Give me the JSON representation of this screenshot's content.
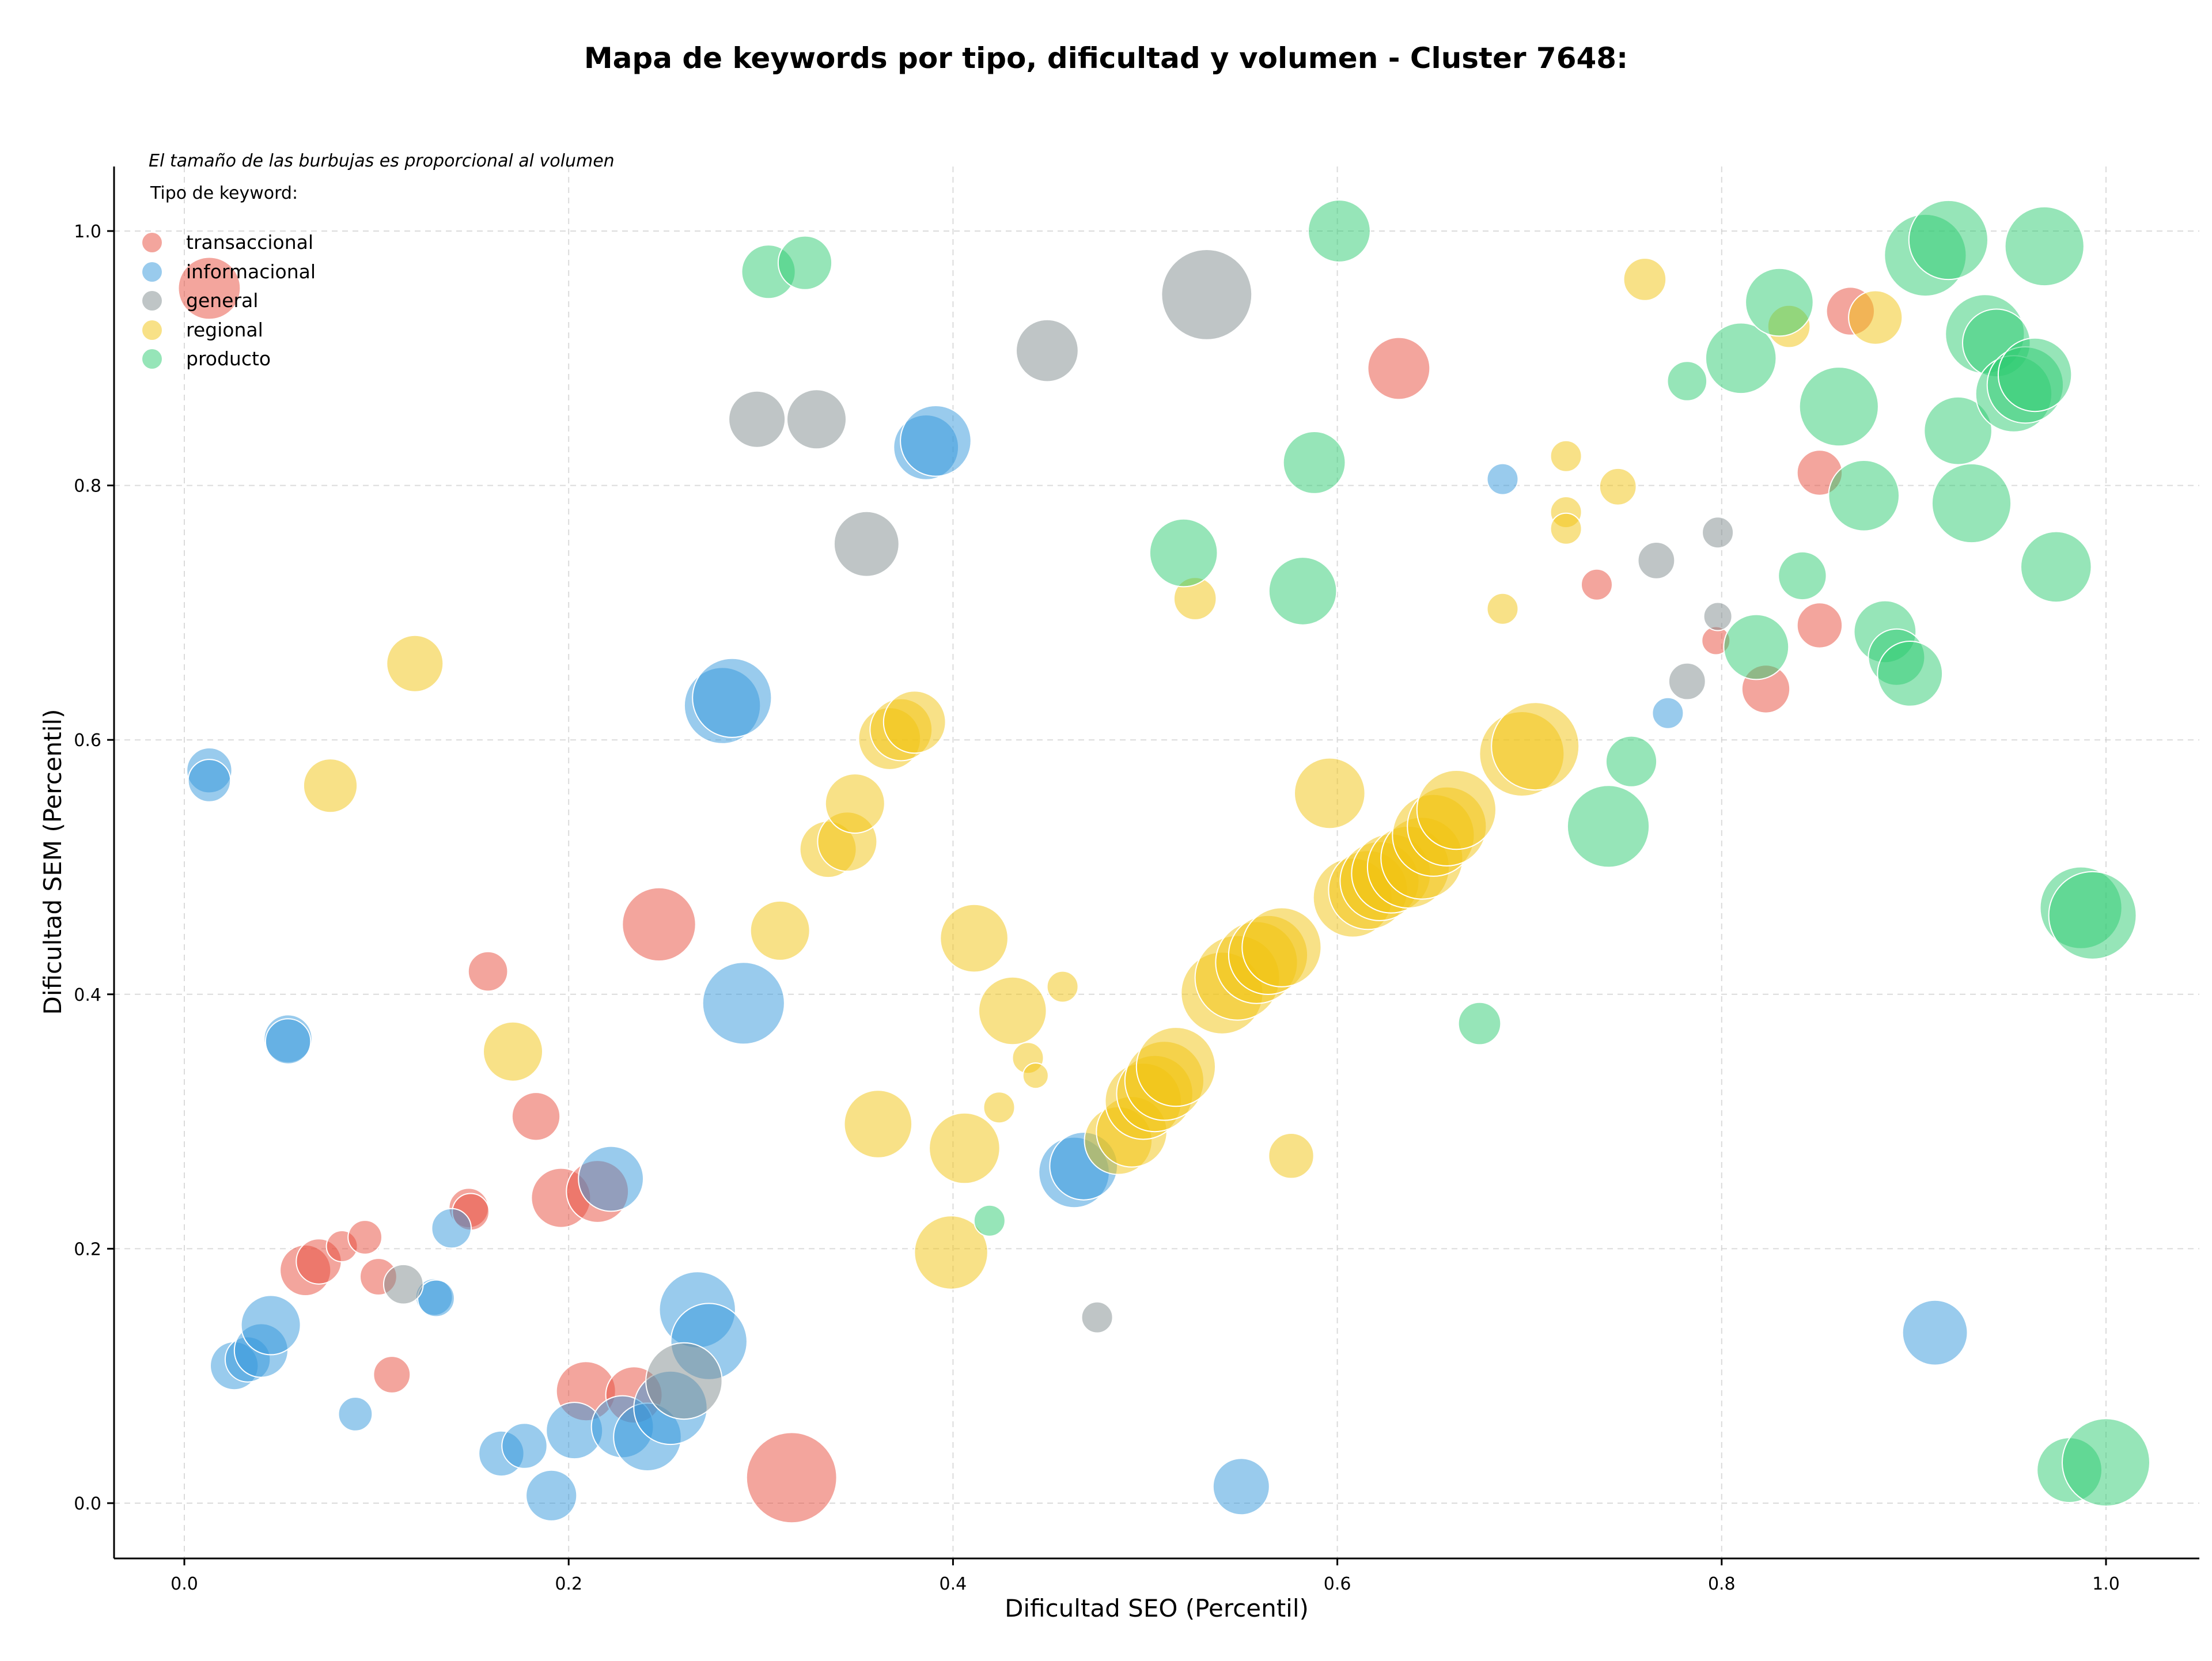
{
  "chart_data": {
    "type": "scatter",
    "title": "Mapa de keywords por tipo, dificultad y volumen - Cluster 7648:",
    "xlabel": "Dificultad SEO (Percentil)",
    "ylabel": "Dificultad SEM (Percentil)",
    "note": "El tamaño de las burbujas es proporcional al volumen",
    "legend_title": "Tipo de keyword:",
    "legend_position": "top-left",
    "grid": true,
    "xlim": [
      -0.035,
      1.045
    ],
    "ylim": [
      -0.043,
      1.05
    ],
    "x_ticks": [
      "0.0",
      "0.2",
      "0.4",
      "0.6",
      "0.8",
      "1.0"
    ],
    "y_ticks": [
      "0.0",
      "0.2",
      "0.4",
      "0.6",
      "0.8",
      "1.0"
    ],
    "series": [
      {
        "name": "transaccional",
        "color": "#e74c3c",
        "points": [
          [
            0.013,
            0.955,
            22
          ],
          [
            0.063,
            0.183,
            18
          ],
          [
            0.07,
            0.19,
            16
          ],
          [
            0.082,
            0.202,
            11
          ],
          [
            0.094,
            0.209,
            12
          ],
          [
            0.101,
            0.178,
            13
          ],
          [
            0.108,
            0.101,
            13
          ],
          [
            0.148,
            0.232,
            14
          ],
          [
            0.149,
            0.229,
            13
          ],
          [
            0.158,
            0.418,
            14
          ],
          [
            0.183,
            0.304,
            17
          ],
          [
            0.196,
            0.24,
            21
          ],
          [
            0.215,
            0.245,
            22
          ],
          [
            0.209,
            0.088,
            21
          ],
          [
            0.234,
            0.085,
            20
          ],
          [
            0.247,
            0.455,
            26
          ],
          [
            0.316,
            0.02,
            32
          ],
          [
            0.632,
            0.892,
            22
          ],
          [
            0.735,
            0.722,
            11
          ],
          [
            0.797,
            0.678,
            10
          ],
          [
            0.823,
            0.64,
            17
          ],
          [
            0.851,
            0.81,
            16
          ],
          [
            0.851,
            0.69,
            16
          ],
          [
            0.867,
            0.937,
            17
          ]
        ]
      },
      {
        "name": "informacional",
        "color": "#3498db",
        "points": [
          [
            0.013,
            0.576,
            16
          ],
          [
            0.013,
            0.568,
            15
          ],
          [
            0.026,
            0.108,
            17
          ],
          [
            0.033,
            0.113,
            16
          ],
          [
            0.04,
            0.12,
            19
          ],
          [
            0.045,
            0.14,
            21
          ],
          [
            0.054,
            0.365,
            17
          ],
          [
            0.054,
            0.363,
            16
          ],
          [
            0.089,
            0.07,
            12
          ],
          [
            0.13,
            0.162,
            13
          ],
          [
            0.131,
            0.161,
            13
          ],
          [
            0.139,
            0.216,
            14
          ],
          [
            0.165,
            0.039,
            16
          ],
          [
            0.177,
            0.045,
            16
          ],
          [
            0.191,
            0.006,
            18
          ],
          [
            0.203,
            0.057,
            20
          ],
          [
            0.222,
            0.255,
            23
          ],
          [
            0.228,
            0.06,
            22
          ],
          [
            0.241,
            0.052,
            24
          ],
          [
            0.253,
            0.075,
            26
          ],
          [
            0.267,
            0.152,
            27
          ],
          [
            0.273,
            0.127,
            27
          ],
          [
            0.28,
            0.627,
            27
          ],
          [
            0.285,
            0.633,
            28
          ],
          [
            0.291,
            0.393,
            29
          ],
          [
            0.386,
            0.83,
            23
          ],
          [
            0.391,
            0.835,
            25
          ],
          [
            0.463,
            0.26,
            25
          ],
          [
            0.468,
            0.265,
            24
          ],
          [
            0.55,
            0.013,
            20
          ],
          [
            0.686,
            0.805,
            11
          ],
          [
            0.772,
            0.621,
            11
          ],
          [
            0.911,
            0.134,
            23
          ]
        ]
      },
      {
        "name": "general",
        "color": "#7f8c8d",
        "points": [
          [
            0.114,
            0.172,
            14
          ],
          [
            0.26,
            0.096,
            27
          ],
          [
            0.298,
            0.852,
            20
          ],
          [
            0.329,
            0.852,
            21
          ],
          [
            0.355,
            0.754,
            23
          ],
          [
            0.449,
            0.906,
            22
          ],
          [
            0.475,
            0.146,
            11
          ],
          [
            0.532,
            0.95,
            32
          ],
          [
            0.766,
            0.741,
            13
          ],
          [
            0.782,
            0.646,
            13
          ],
          [
            0.798,
            0.763,
            11
          ],
          [
            0.798,
            0.697,
            10
          ]
        ]
      },
      {
        "name": "regional",
        "color": "#f1c40f",
        "points": [
          [
            0.076,
            0.564,
            19
          ],
          [
            0.12,
            0.66,
            20
          ],
          [
            0.171,
            0.355,
            21
          ],
          [
            0.31,
            0.45,
            21
          ],
          [
            0.335,
            0.514,
            20
          ],
          [
            0.345,
            0.52,
            21
          ],
          [
            0.349,
            0.55,
            21
          ],
          [
            0.361,
            0.298,
            24
          ],
          [
            0.367,
            0.601,
            22
          ],
          [
            0.373,
            0.608,
            22
          ],
          [
            0.38,
            0.614,
            22
          ],
          [
            0.399,
            0.197,
            26
          ],
          [
            0.406,
            0.279,
            25
          ],
          [
            0.411,
            0.444,
            24
          ],
          [
            0.424,
            0.311,
            11
          ],
          [
            0.431,
            0.387,
            24
          ],
          [
            0.439,
            0.35,
            11
          ],
          [
            0.443,
            0.336,
            9
          ],
          [
            0.457,
            0.406,
            11
          ],
          [
            0.486,
            0.285,
            24
          ],
          [
            0.493,
            0.292,
            25
          ],
          [
            0.499,
            0.316,
            27
          ],
          [
            0.505,
            0.322,
            27
          ],
          [
            0.51,
            0.332,
            28
          ],
          [
            0.516,
            0.343,
            28
          ],
          [
            0.526,
            0.711,
            15
          ],
          [
            0.54,
            0.401,
            29
          ],
          [
            0.548,
            0.413,
            30
          ],
          [
            0.558,
            0.425,
            29
          ],
          [
            0.564,
            0.431,
            28
          ],
          [
            0.571,
            0.437,
            28
          ],
          [
            0.576,
            0.273,
            16
          ],
          [
            0.596,
            0.558,
            25
          ],
          [
            0.608,
            0.476,
            28
          ],
          [
            0.616,
            0.482,
            28
          ],
          [
            0.622,
            0.489,
            28
          ],
          [
            0.628,
            0.495,
            28
          ],
          [
            0.637,
            0.5,
            29
          ],
          [
            0.644,
            0.507,
            29
          ],
          [
            0.65,
            0.525,
            29
          ],
          [
            0.657,
            0.532,
            28
          ],
          [
            0.662,
            0.545,
            28
          ],
          [
            0.686,
            0.703,
            11
          ],
          [
            0.696,
            0.589,
            30
          ],
          [
            0.703,
            0.595,
            31
          ],
          [
            0.719,
            0.823,
            11
          ],
          [
            0.719,
            0.779,
            11
          ],
          [
            0.719,
            0.766,
            11
          ],
          [
            0.746,
            0.799,
            13
          ],
          [
            0.76,
            0.962,
            15
          ],
          [
            0.835,
            0.925,
            15
          ],
          [
            0.88,
            0.932,
            19
          ]
        ]
      },
      {
        "name": "producto",
        "color": "#2ecc71",
        "points": [
          [
            0.304,
            0.968,
            19
          ],
          [
            0.323,
            0.975,
            19
          ],
          [
            0.419,
            0.222,
            11
          ],
          [
            0.52,
            0.747,
            24
          ],
          [
            0.582,
            0.717,
            24
          ],
          [
            0.588,
            0.818,
            22
          ],
          [
            0.601,
            1.0,
            22
          ],
          [
            0.674,
            0.377,
            15
          ],
          [
            0.741,
            0.532,
            29
          ],
          [
            0.753,
            0.583,
            18
          ],
          [
            0.782,
            0.882,
            14
          ],
          [
            0.81,
            0.9,
            25
          ],
          [
            0.818,
            0.673,
            23
          ],
          [
            0.83,
            0.944,
            24
          ],
          [
            0.842,
            0.729,
            17
          ],
          [
            0.861,
            0.862,
            28
          ],
          [
            0.874,
            0.792,
            25
          ],
          [
            0.885,
            0.685,
            22
          ],
          [
            0.891,
            0.665,
            20
          ],
          [
            0.898,
            0.652,
            23
          ],
          [
            0.906,
            0.981,
            29
          ],
          [
            0.918,
            0.993,
            28
          ],
          [
            0.923,
            0.843,
            24
          ],
          [
            0.93,
            0.786,
            28
          ],
          [
            0.937,
            0.919,
            28
          ],
          [
            0.943,
            0.912,
            24
          ],
          [
            0.952,
            0.872,
            27
          ],
          [
            0.958,
            0.879,
            27
          ],
          [
            0.963,
            0.887,
            26
          ],
          [
            0.968,
            0.988,
            28
          ],
          [
            0.974,
            0.736,
            25
          ],
          [
            0.981,
            0.026,
            23
          ],
          [
            0.987,
            0.468,
            29
          ],
          [
            0.993,
            0.462,
            31
          ],
          [
            1.0,
            0.032,
            31
          ]
        ]
      }
    ]
  }
}
